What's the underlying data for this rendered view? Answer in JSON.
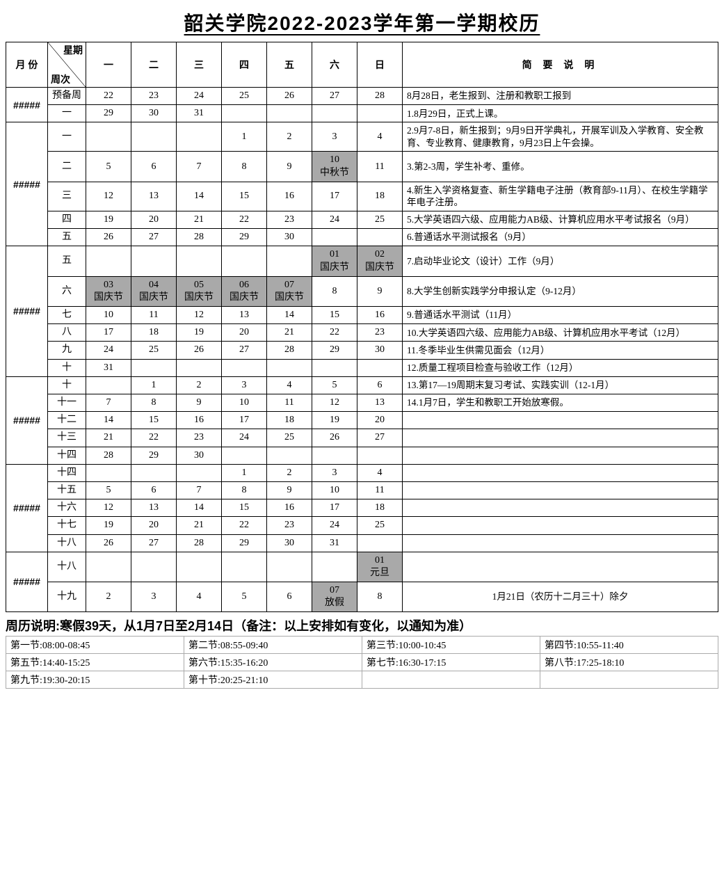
{
  "title": "韶关学院2022-2023学年第一学期校历",
  "header": {
    "month": "月 份",
    "diag_top": "星期",
    "diag_bottom": "周次",
    "days": [
      "一",
      "二",
      "三",
      "四",
      "五",
      "六",
      "日"
    ],
    "note": "简 要 说 明"
  },
  "months": [
    {
      "label": "#####",
      "rows": [
        {
          "wk": "预备周",
          "d": [
            "22",
            "23",
            "24",
            "25",
            "26",
            "27",
            "28"
          ],
          "sh": [],
          "note": "8月28日，老生报到、注册和教职工报到"
        },
        {
          "wk": "一",
          "d": [
            "29",
            "30",
            "31",
            "",
            "",
            "",
            ""
          ],
          "sh": [],
          "note": "1.8月29日，正式上课。"
        }
      ]
    },
    {
      "label": "#####",
      "rows": [
        {
          "wk": "一",
          "d": [
            "",
            "",
            "",
            "1",
            "2",
            "3",
            "4"
          ],
          "sh": [],
          "note": "2.9月7-8日，新生报到；9月9日开学典礼，开展军训及入学教育、安全教育、专业教育、健康教育，9月23日上午会操。"
        },
        {
          "wk": "二",
          "d": [
            "5",
            "6",
            "7",
            "8",
            "9",
            "10\n中秋节",
            "11"
          ],
          "sh": [
            5
          ],
          "note": "3.第2-3周，学生补考、重修。"
        },
        {
          "wk": "三",
          "d": [
            "12",
            "13",
            "14",
            "15",
            "16",
            "17",
            "18"
          ],
          "sh": [],
          "note": "4.新生入学资格复查、新生学籍电子注册（教育部9-11月）、在校生学籍学年电子注册。"
        },
        {
          "wk": "四",
          "d": [
            "19",
            "20",
            "21",
            "22",
            "23",
            "24",
            "25"
          ],
          "sh": [],
          "note": "5.大学英语四六级、应用能力AB级、计算机应用水平考试报名（9月）"
        },
        {
          "wk": "五",
          "d": [
            "26",
            "27",
            "28",
            "29",
            "30",
            "",
            ""
          ],
          "sh": [],
          "note": "6.普通话水平测试报名（9月）"
        }
      ]
    },
    {
      "label": "#####",
      "rows": [
        {
          "wk": "五",
          "d": [
            "",
            "",
            "",
            "",
            "",
            "01\n国庆节",
            "02\n国庆节"
          ],
          "sh": [
            5,
            6
          ],
          "note": "7.启动毕业论文（设计）工作（9月）"
        },
        {
          "wk": "六",
          "d": [
            "03\n国庆节",
            "04\n国庆节",
            "05\n国庆节",
            "06\n国庆节",
            "07\n国庆节",
            "8",
            "9"
          ],
          "sh": [
            0,
            1,
            2,
            3,
            4
          ],
          "note": "8.大学生创新实践学分申报认定（9-12月）"
        },
        {
          "wk": "七",
          "d": [
            "10",
            "11",
            "12",
            "13",
            "14",
            "15",
            "16"
          ],
          "sh": [],
          "note": "9.普通话水平测试（11月）"
        },
        {
          "wk": "八",
          "d": [
            "17",
            "18",
            "19",
            "20",
            "21",
            "22",
            "23"
          ],
          "sh": [],
          "note": "10.大学英语四六级、应用能力AB级、计算机应用水平考试（12月）"
        },
        {
          "wk": "九",
          "d": [
            "24",
            "25",
            "26",
            "27",
            "28",
            "29",
            "30"
          ],
          "sh": [],
          "note": "11.冬季毕业生供需见面会（12月）"
        },
        {
          "wk": "十",
          "d": [
            "31",
            "",
            "",
            "",
            "",
            "",
            ""
          ],
          "sh": [],
          "note": "12.质量工程项目检查与验收工作（12月）"
        }
      ]
    },
    {
      "label": "#####",
      "rows": [
        {
          "wk": "十",
          "d": [
            "",
            "1",
            "2",
            "3",
            "4",
            "5",
            "6"
          ],
          "sh": [],
          "note": "13.第17—19周期末复习考试、实践实训（12-1月）"
        },
        {
          "wk": "十一",
          "d": [
            "7",
            "8",
            "9",
            "10",
            "11",
            "12",
            "13"
          ],
          "sh": [],
          "note": "14.1月7日，学生和教职工开始放寒假。"
        },
        {
          "wk": "十二",
          "d": [
            "14",
            "15",
            "16",
            "17",
            "18",
            "19",
            "20"
          ],
          "sh": [],
          "note": ""
        },
        {
          "wk": "十三",
          "d": [
            "21",
            "22",
            "23",
            "24",
            "25",
            "26",
            "27"
          ],
          "sh": [],
          "note": ""
        },
        {
          "wk": "十四",
          "d": [
            "28",
            "29",
            "30",
            "",
            "",
            "",
            ""
          ],
          "sh": [],
          "note": ""
        }
      ]
    },
    {
      "label": "#####",
      "rows": [
        {
          "wk": "十四",
          "d": [
            "",
            "",
            "",
            "1",
            "2",
            "3",
            "4"
          ],
          "sh": [],
          "note": ""
        },
        {
          "wk": "十五",
          "d": [
            "5",
            "6",
            "7",
            "8",
            "9",
            "10",
            "11"
          ],
          "sh": [],
          "note": ""
        },
        {
          "wk": "十六",
          "d": [
            "12",
            "13",
            "14",
            "15",
            "16",
            "17",
            "18"
          ],
          "sh": [],
          "note": ""
        },
        {
          "wk": "十七",
          "d": [
            "19",
            "20",
            "21",
            "22",
            "23",
            "24",
            "25"
          ],
          "sh": [],
          "note": ""
        },
        {
          "wk": "十八",
          "d": [
            "26",
            "27",
            "28",
            "29",
            "30",
            "31",
            ""
          ],
          "sh": [],
          "note": ""
        }
      ]
    },
    {
      "label": "#####",
      "rows": [
        {
          "wk": "十八",
          "d": [
            "",
            "",
            "",
            "",
            "",
            "",
            "01\n元旦"
          ],
          "sh": [
            6
          ],
          "note": ""
        },
        {
          "wk": "十九",
          "d": [
            "2",
            "3",
            "4",
            "5",
            "6",
            "07\n放假",
            "8"
          ],
          "sh": [
            5
          ],
          "note": "1月21日（农历十二月三十）除夕",
          "note_center": true
        }
      ]
    }
  ],
  "footer_note": "周历说明:寒假39天，从1月7日至2月14日（备注：以上安排如有变化，以通知为准）",
  "periods": [
    [
      "第一节:08:00-08:45",
      "第二节:08:55-09:40",
      "第三节:10:00-10:45",
      "第四节:10:55-11:40"
    ],
    [
      "第五节:14:40-15:25",
      "第六节:15:35-16:20",
      "第七节:16:30-17:15",
      "第八节:17:25-18:10"
    ],
    [
      "第九节:19:30-20:15",
      "第十节:20:25-21:10",
      "",
      ""
    ]
  ]
}
